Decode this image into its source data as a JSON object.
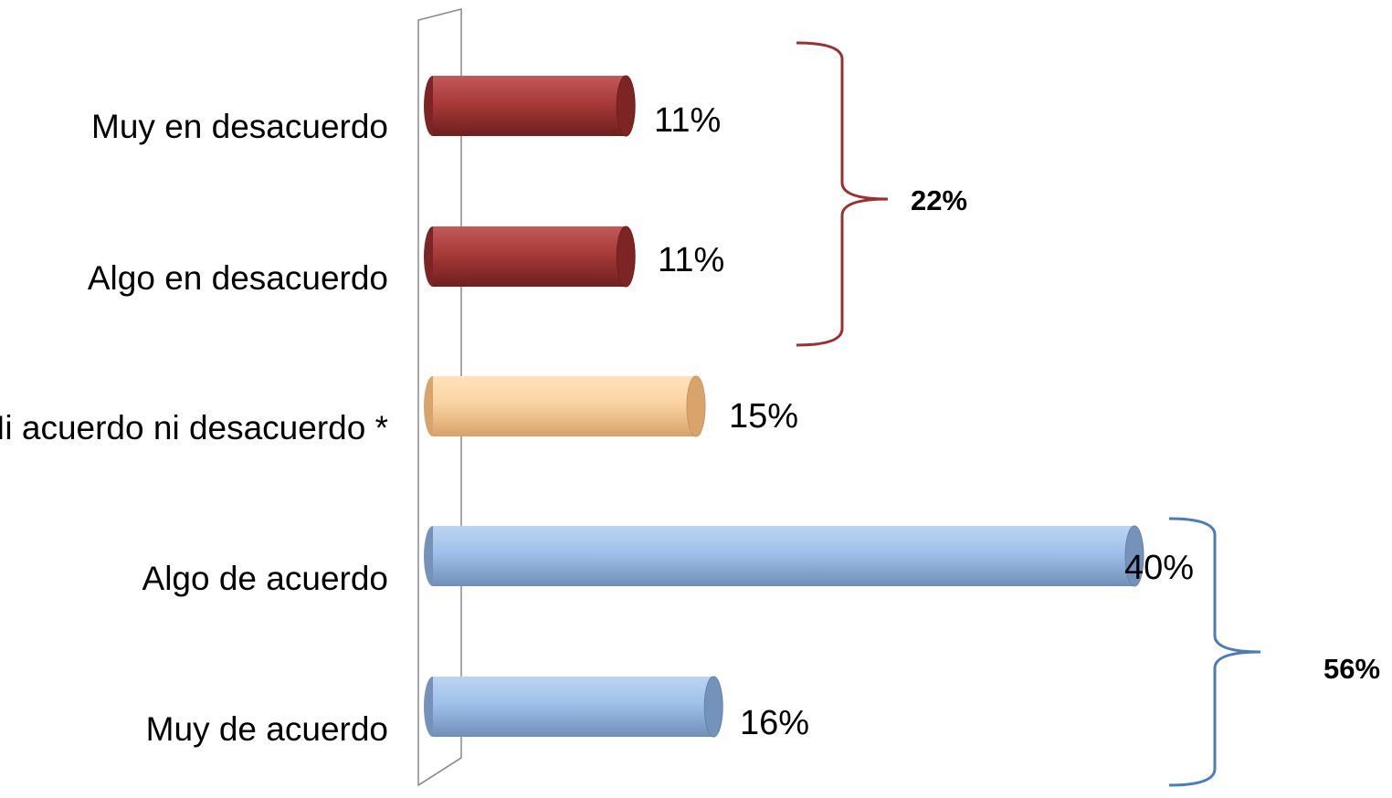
{
  "chart_data": {
    "type": "bar",
    "orientation": "horizontal",
    "categories": [
      "Muy en desacuerdo",
      "Algo en desacuerdo",
      "Ni acuerdo ni desacuerdo *",
      "Algo de acuerdo",
      "Muy de acuerdo"
    ],
    "values": [
      11,
      11,
      15,
      40,
      16
    ],
    "value_labels": [
      "11%",
      "11%",
      "15%",
      "40%",
      "16%"
    ],
    "bar_colors": [
      "#a33a3a",
      "#a33a3a",
      "#f7cd99",
      "#9dbce6",
      "#9dbce6"
    ],
    "xlim": [
      0,
      40
    ],
    "grid": false,
    "legend": "none",
    "title": "",
    "xlabel": "",
    "ylabel": "",
    "groups": [
      {
        "label": "22%",
        "from": 0,
        "to": 1,
        "color": "#9b3030"
      },
      {
        "label": "56%",
        "from": 3,
        "to": 4,
        "color": "#4a7cba"
      }
    ]
  }
}
